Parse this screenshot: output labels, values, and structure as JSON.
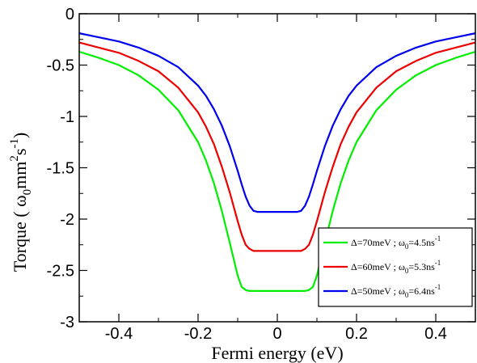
{
  "chart_data": {
    "type": "line",
    "title": "",
    "xlabel": "Fermi energy (eV)",
    "ylabel": "Torque ( ω0mm2s-1)",
    "ylabel_parts": {
      "open": "Torque ( ",
      "omega": "ω",
      "omega_sub": "0",
      "mm": "mm",
      "mm_sup": "2",
      "s": "s",
      "s_sup": "-1",
      "close": ")"
    },
    "xlim": [
      -0.5,
      0.5
    ],
    "ylim": [
      -3,
      0
    ],
    "xticks": [
      -0.4,
      -0.2,
      0,
      0.2,
      0.4
    ],
    "xtick_labels": [
      "-0.4",
      "-0.2",
      "0",
      "0.2",
      "0.4"
    ],
    "yticks": [
      0,
      -0.5,
      -1,
      -1.5,
      -2,
      -2.5,
      -3
    ],
    "ytick_labels": [
      "0",
      "-0.5",
      "-1",
      "-1.5",
      "-2",
      "-2.5",
      "-3"
    ],
    "grid": false,
    "legend_position": "bottom-right",
    "series": [
      {
        "name": "Δ=70meV ; ω0=4.5ns-1",
        "label_parts": {
          "delta": "Δ=70meV ; ",
          "omega": "ω",
          "omega_sub": "0",
          "rest": "=4.5ns",
          "sup": "-1"
        },
        "color": "#00ee00",
        "gap": 0.07,
        "plateau": -2.7,
        "x": [
          -0.5,
          -0.45,
          -0.4,
          -0.35,
          -0.3,
          -0.25,
          -0.2,
          -0.18,
          -0.16,
          -0.14,
          -0.12,
          -0.1,
          -0.09,
          -0.08,
          -0.07,
          0.07,
          0.08,
          0.09,
          0.1,
          0.12,
          0.14,
          0.16,
          0.18,
          0.2,
          0.25,
          0.3,
          0.35,
          0.4,
          0.45,
          0.5
        ],
        "y": [
          -0.37,
          -0.43,
          -0.5,
          -0.6,
          -0.74,
          -0.94,
          -1.25,
          -1.43,
          -1.65,
          -1.92,
          -2.23,
          -2.55,
          -2.66,
          -2.69,
          -2.7,
          -2.7,
          -2.69,
          -2.66,
          -2.55,
          -2.23,
          -1.92,
          -1.65,
          -1.43,
          -1.25,
          -0.94,
          -0.74,
          -0.6,
          -0.5,
          -0.43,
          -0.37
        ]
      },
      {
        "name": "Δ=60meV ; ω0=5.3ns-1",
        "label_parts": {
          "delta": "Δ=60meV ; ",
          "omega": "ω",
          "omega_sub": "0",
          "rest": "=5.3ns",
          "sup": "-1"
        },
        "color": "#ee0000",
        "gap": 0.06,
        "plateau": -2.31,
        "x": [
          -0.5,
          -0.45,
          -0.4,
          -0.35,
          -0.3,
          -0.25,
          -0.2,
          -0.18,
          -0.16,
          -0.14,
          -0.12,
          -0.1,
          -0.09,
          -0.08,
          -0.07,
          -0.06,
          0.06,
          0.07,
          0.08,
          0.09,
          0.1,
          0.12,
          0.14,
          0.16,
          0.18,
          0.2,
          0.25,
          0.3,
          0.35,
          0.4,
          0.45,
          0.5
        ],
        "y": [
          -0.28,
          -0.33,
          -0.38,
          -0.46,
          -0.56,
          -0.72,
          -0.96,
          -1.1,
          -1.27,
          -1.49,
          -1.74,
          -2.02,
          -2.15,
          -2.25,
          -2.29,
          -2.31,
          -2.31,
          -2.29,
          -2.25,
          -2.15,
          -2.02,
          -1.74,
          -1.49,
          -1.27,
          -1.1,
          -0.96,
          -0.72,
          -0.56,
          -0.46,
          -0.38,
          -0.33,
          -0.28
        ]
      },
      {
        "name": "Δ=50meV ; ω0=6.4ns-1",
        "label_parts": {
          "delta": "Δ=50meV ; ",
          "omega": "ω",
          "omega_sub": "0",
          "rest": "=6.4ns",
          "sup": "-1"
        },
        "color": "#0000ee",
        "gap": 0.05,
        "plateau": -1.93,
        "x": [
          -0.5,
          -0.45,
          -0.4,
          -0.35,
          -0.3,
          -0.25,
          -0.2,
          -0.18,
          -0.16,
          -0.14,
          -0.12,
          -0.1,
          -0.09,
          -0.08,
          -0.07,
          -0.06,
          -0.05,
          0.05,
          0.06,
          0.07,
          0.08,
          0.09,
          0.1,
          0.12,
          0.14,
          0.16,
          0.18,
          0.2,
          0.25,
          0.3,
          0.35,
          0.4,
          0.45,
          0.5
        ],
        "y": [
          -0.19,
          -0.23,
          -0.27,
          -0.33,
          -0.41,
          -0.52,
          -0.7,
          -0.8,
          -0.93,
          -1.09,
          -1.29,
          -1.53,
          -1.66,
          -1.78,
          -1.87,
          -1.92,
          -1.93,
          -1.93,
          -1.92,
          -1.87,
          -1.78,
          -1.66,
          -1.53,
          -1.29,
          -1.09,
          -0.93,
          -0.8,
          -0.7,
          -0.52,
          -0.41,
          -0.33,
          -0.27,
          -0.23,
          -0.19
        ]
      }
    ]
  }
}
